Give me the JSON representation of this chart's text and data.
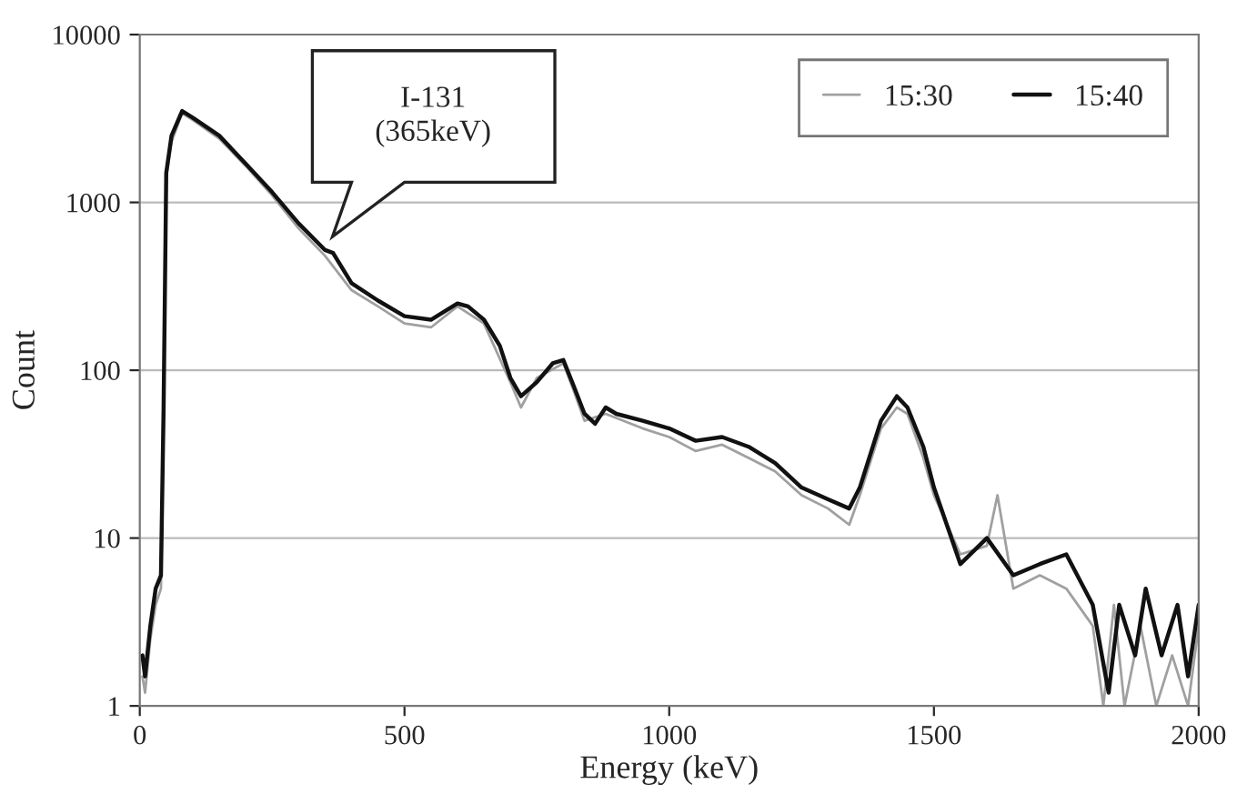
{
  "chart_data": {
    "type": "line",
    "xlabel": "Energy (keV)",
    "ylabel": "Count",
    "log": "y",
    "xlim": [
      0,
      2000
    ],
    "ylim": [
      1,
      10000
    ],
    "xticks": [
      0,
      500,
      1000,
      1500,
      2000
    ],
    "yticks": [
      1,
      10,
      100,
      1000,
      10000
    ],
    "grid": "y",
    "legend": "top right",
    "annotations": [
      "I-131\n(365keV)"
    ],
    "series": [
      {
        "name": "15:30",
        "color": "#a0a0a0",
        "x": [
          5,
          10,
          20,
          30,
          40,
          45,
          50,
          60,
          80,
          100,
          150,
          200,
          250,
          300,
          350,
          400,
          450,
          500,
          550,
          600,
          650,
          700,
          720,
          750,
          800,
          820,
          840,
          880,
          950,
          1000,
          1050,
          1100,
          1150,
          1200,
          1250,
          1300,
          1340,
          1360,
          1400,
          1430,
          1450,
          1480,
          1500,
          1550,
          1600,
          1620,
          1650,
          1700,
          1750,
          1800,
          1820,
          1840,
          1860,
          1890,
          1920,
          1950,
          1980,
          2000
        ],
        "values": [
          1.5,
          1.2,
          2.5,
          4,
          5,
          50,
          1400,
          2300,
          3400,
          3100,
          2400,
          1650,
          1100,
          700,
          480,
          300,
          240,
          190,
          180,
          240,
          190,
          85,
          60,
          90,
          110,
          75,
          50,
          55,
          45,
          40,
          33,
          36,
          30,
          25,
          18,
          15,
          12,
          18,
          45,
          60,
          55,
          30,
          18,
          8,
          9,
          18,
          5,
          6,
          5,
          3,
          1,
          4,
          1,
          3,
          1,
          2,
          1,
          3
        ]
      },
      {
        "name": "15:40",
        "color": "#111111",
        "x": [
          5,
          10,
          20,
          30,
          40,
          45,
          50,
          60,
          80,
          100,
          150,
          200,
          250,
          300,
          350,
          365,
          400,
          450,
          500,
          550,
          600,
          620,
          650,
          680,
          700,
          720,
          750,
          780,
          800,
          820,
          840,
          860,
          880,
          900,
          950,
          1000,
          1050,
          1100,
          1150,
          1200,
          1250,
          1300,
          1340,
          1360,
          1400,
          1430,
          1450,
          1480,
          1500,
          1550,
          1600,
          1650,
          1700,
          1750,
          1800,
          1830,
          1850,
          1880,
          1900,
          1930,
          1960,
          1980,
          2000
        ],
        "values": [
          2,
          1.5,
          3,
          5,
          6,
          60,
          1500,
          2500,
          3500,
          3200,
          2500,
          1700,
          1150,
          750,
          520,
          500,
          330,
          260,
          210,
          200,
          250,
          240,
          200,
          140,
          90,
          70,
          85,
          110,
          115,
          80,
          55,
          48,
          60,
          55,
          50,
          45,
          38,
          40,
          35,
          28,
          20,
          17,
          15,
          20,
          50,
          70,
          60,
          35,
          20,
          7,
          10,
          6,
          7,
          8,
          4,
          1.2,
          4,
          2,
          5,
          2,
          4,
          1.5,
          4
        ]
      }
    ]
  }
}
